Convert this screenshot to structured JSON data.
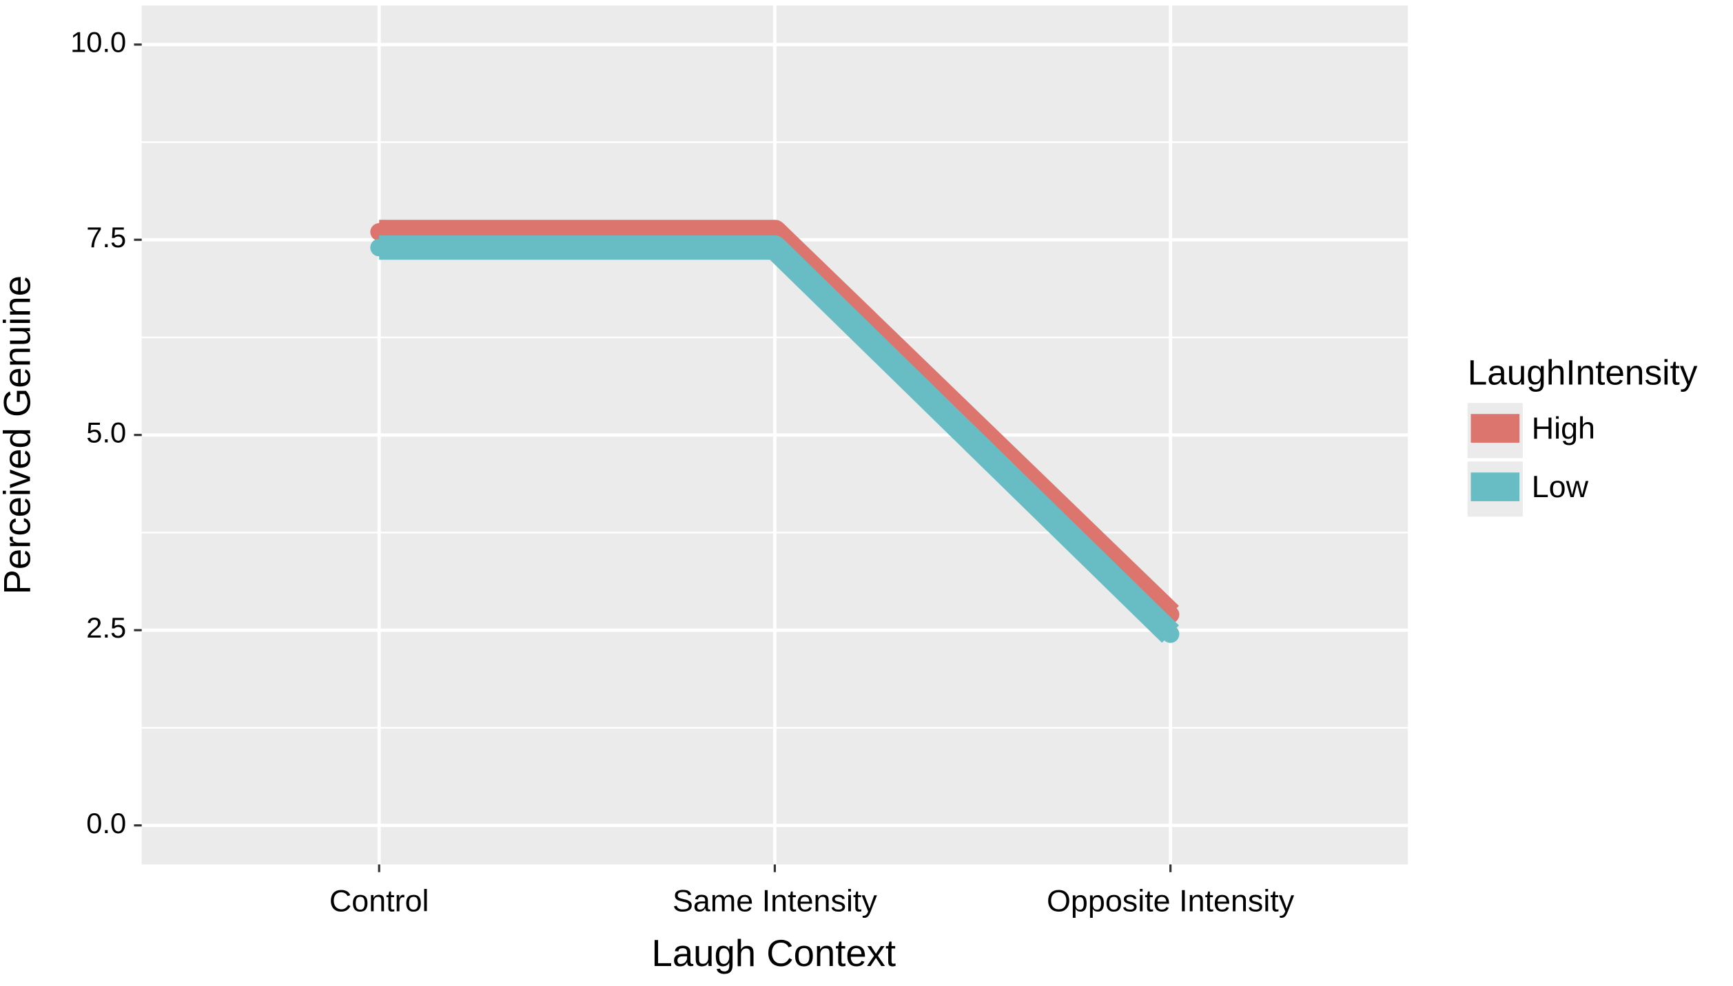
{
  "chart_data": {
    "type": "line",
    "x_label": "Laugh Context",
    "y_label": "Perceived Genuine",
    "legend_title": "LaughIntensity",
    "legend_position": "right",
    "categories": [
      "Control",
      "Same Intensity",
      "Opposite Intensity"
    ],
    "series": [
      {
        "name": "High",
        "color": "#dc756d",
        "values": [
          7.6,
          7.6,
          2.7
        ]
      },
      {
        "name": "Low",
        "color": "#67bdc3",
        "values": [
          7.4,
          7.4,
          2.45
        ]
      }
    ],
    "ylim": [
      -0.5,
      10.5
    ],
    "yticks": [
      {
        "value": 0,
        "label": "0.0"
      },
      2.5,
      {
        "value": 5,
        "label": "5.0"
      },
      7.5,
      {
        "value": 10,
        "label": "10.0"
      }
    ],
    "grid": true
  }
}
